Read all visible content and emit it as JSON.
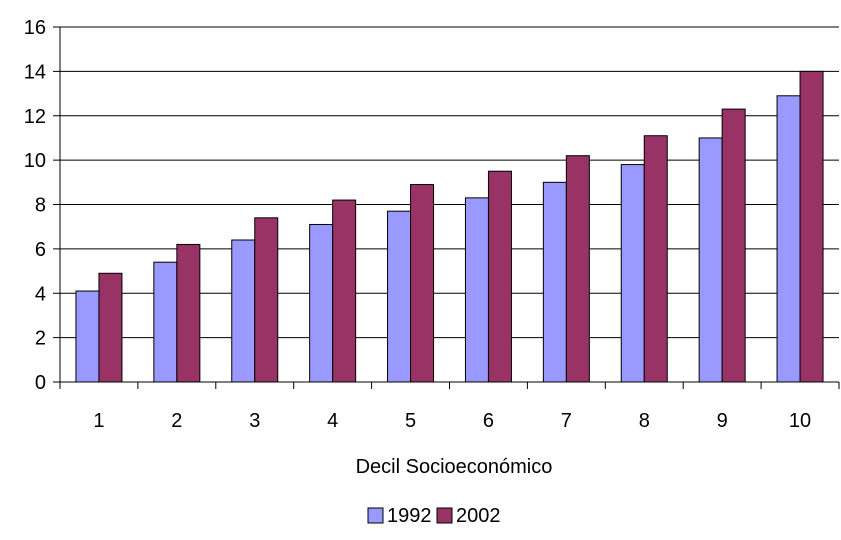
{
  "chart_data": {
    "type": "bar",
    "categories": [
      "1",
      "2",
      "3",
      "4",
      "5",
      "6",
      "7",
      "8",
      "9",
      "10"
    ],
    "series": [
      {
        "name": "1992",
        "color": "#9999ff",
        "values": [
          4.1,
          5.4,
          6.4,
          7.1,
          7.7,
          8.3,
          9.0,
          9.8,
          11.0,
          12.9
        ]
      },
      {
        "name": "2002",
        "color": "#993366",
        "values": [
          4.9,
          6.2,
          7.4,
          8.2,
          8.9,
          9.5,
          10.2,
          11.1,
          12.3,
          14.0
        ]
      }
    ],
    "title": "",
    "xlabel": "Decil Socioeconómico",
    "ylabel": "",
    "ylim": [
      0,
      16
    ],
    "yticks": [
      "0",
      "2",
      "4",
      "6",
      "8",
      "10",
      "12",
      "14",
      "16"
    ],
    "grid": true,
    "legend_position": "bottom"
  }
}
